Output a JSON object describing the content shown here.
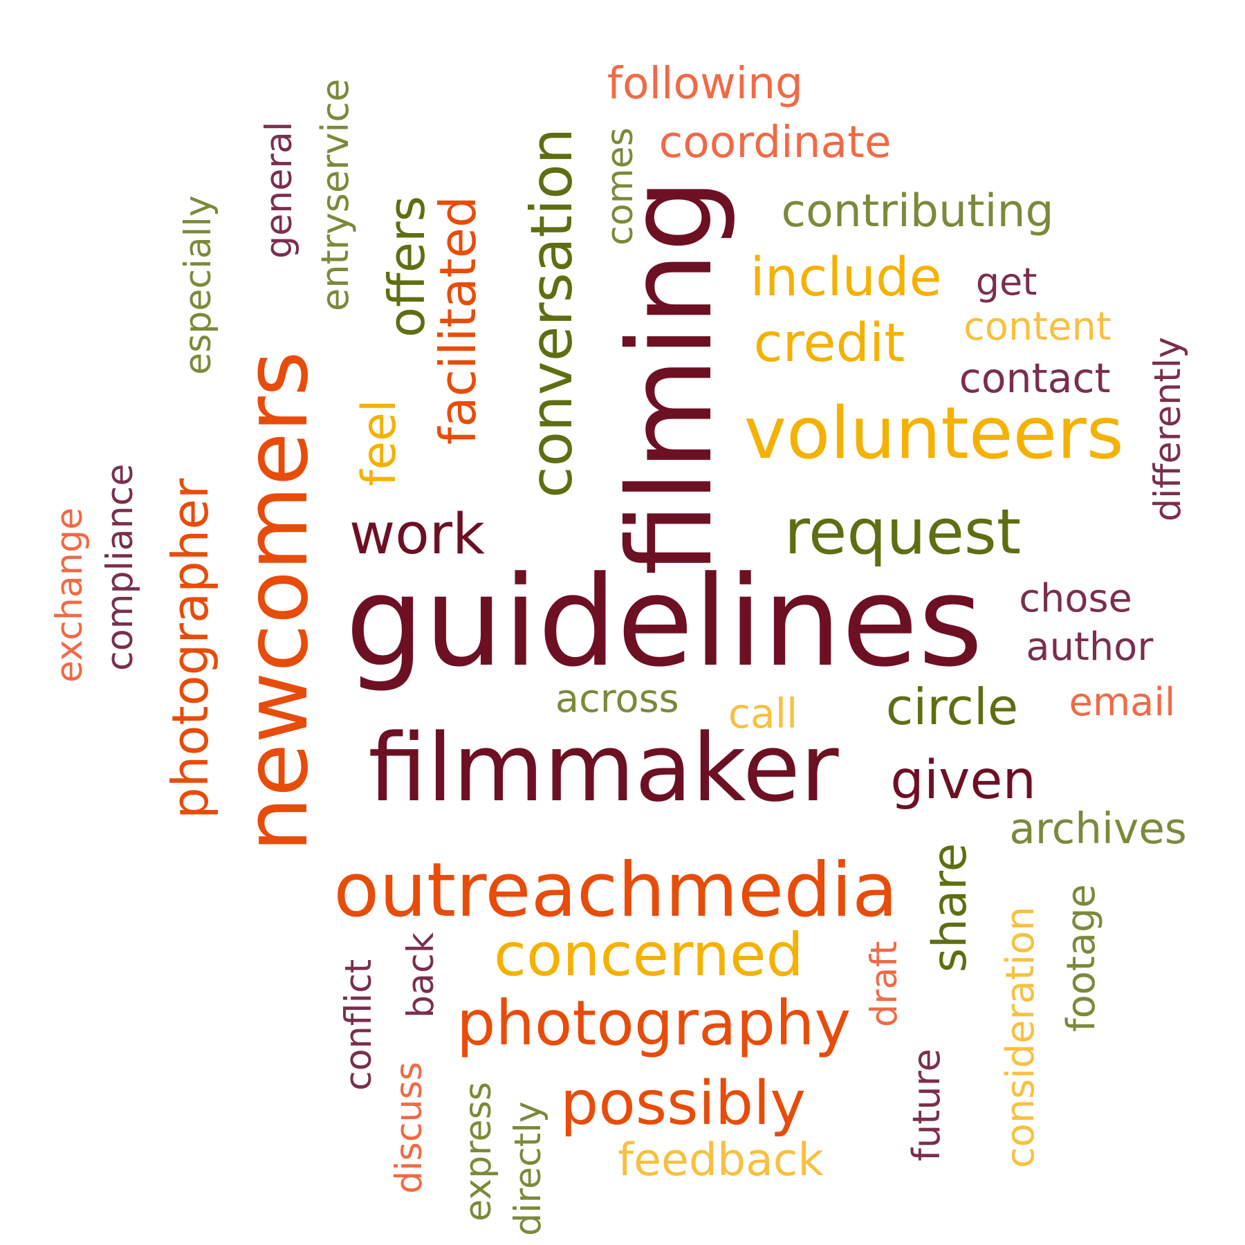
{
  "words": [
    {
      "text": "guidelines",
      "color": "#6d1024",
      "vertical": false
    },
    {
      "text": "newcomers",
      "color": "#e84c0a",
      "vertical": true
    },
    {
      "text": "filming",
      "color": "#6d1024",
      "vertical": true
    },
    {
      "text": "filmmaker",
      "color": "#6d1024",
      "vertical": false
    },
    {
      "text": "outreachmedia",
      "color": "#e84c0a",
      "vertical": false
    },
    {
      "text": "conversation",
      "color": "#5f6e12",
      "vertical": true
    },
    {
      "text": "volunteers",
      "color": "#f5b100",
      "vertical": false
    },
    {
      "text": "request",
      "color": "#5f6e12",
      "vertical": false
    },
    {
      "text": "work",
      "color": "#6d1024",
      "vertical": false
    },
    {
      "text": "photographer",
      "color": "#e84c0a",
      "vertical": true
    },
    {
      "text": "facilitated",
      "color": "#e84c0a",
      "vertical": true
    },
    {
      "text": "offers",
      "color": "#5f6e12",
      "vertical": true
    },
    {
      "text": "photography",
      "color": "#e84c0a",
      "vertical": false
    },
    {
      "text": "possibly",
      "color": "#e84c0a",
      "vertical": false
    },
    {
      "text": "concerned",
      "color": "#f5b100",
      "vertical": false
    },
    {
      "text": "include",
      "color": "#f5b100",
      "vertical": false
    },
    {
      "text": "credit",
      "color": "#f5b100",
      "vertical": false
    },
    {
      "text": "circle",
      "color": "#5f6e12",
      "vertical": false
    },
    {
      "text": "given",
      "color": "#6d1024",
      "vertical": false
    },
    {
      "text": "share",
      "color": "#5f6e12",
      "vertical": true
    },
    {
      "text": "feel",
      "color": "#f5b100",
      "vertical": true
    },
    {
      "text": "contributing",
      "color": "#7a8a3a",
      "vertical": false
    },
    {
      "text": "coordinate",
      "color": "#f06a45",
      "vertical": false
    },
    {
      "text": "following",
      "color": "#f06a45",
      "vertical": false
    },
    {
      "text": "comes",
      "color": "#7a8a3a",
      "vertical": true
    },
    {
      "text": "entryservice",
      "color": "#7a8a3a",
      "vertical": true
    },
    {
      "text": "general",
      "color": "#7a2e4e",
      "vertical": true
    },
    {
      "text": "especially",
      "color": "#7a8a3a",
      "vertical": true
    },
    {
      "text": "compliance",
      "color": "#7a2e4e",
      "vertical": true
    },
    {
      "text": "exchange",
      "color": "#f06a45",
      "vertical": true
    },
    {
      "text": "get",
      "color": "#7a2e4e",
      "vertical": false
    },
    {
      "text": "content",
      "color": "#f8c040",
      "vertical": false
    },
    {
      "text": "contact",
      "color": "#7a2e4e",
      "vertical": false
    },
    {
      "text": "differently",
      "color": "#7a2e4e",
      "vertical": true
    },
    {
      "text": "chose",
      "color": "#7a2e4e",
      "vertical": false
    },
    {
      "text": "author",
      "color": "#7a2e4e",
      "vertical": false
    },
    {
      "text": "email",
      "color": "#f06a45",
      "vertical": false
    },
    {
      "text": "archives",
      "color": "#7a8a3a",
      "vertical": false
    },
    {
      "text": "across",
      "color": "#7a8a3a",
      "vertical": false
    },
    {
      "text": "call",
      "color": "#f8c040",
      "vertical": false
    },
    {
      "text": "draft",
      "color": "#f06a45",
      "vertical": true
    },
    {
      "text": "future",
      "color": "#7a2e4e",
      "vertical": true
    },
    {
      "text": "consideration",
      "color": "#f8c040",
      "vertical": true
    },
    {
      "text": "footage",
      "color": "#7a8a3a",
      "vertical": true
    },
    {
      "text": "feedback",
      "color": "#f8c040",
      "vertical": false
    },
    {
      "text": "conflict",
      "color": "#7a2e4e",
      "vertical": true
    },
    {
      "text": "back",
      "color": "#7a2e4e",
      "vertical": true
    },
    {
      "text": "discuss",
      "color": "#f06a45",
      "vertical": true
    },
    {
      "text": "express",
      "color": "#7a8a3a",
      "vertical": true
    },
    {
      "text": "directly",
      "color": "#7a8a3a",
      "vertical": true
    }
  ]
}
